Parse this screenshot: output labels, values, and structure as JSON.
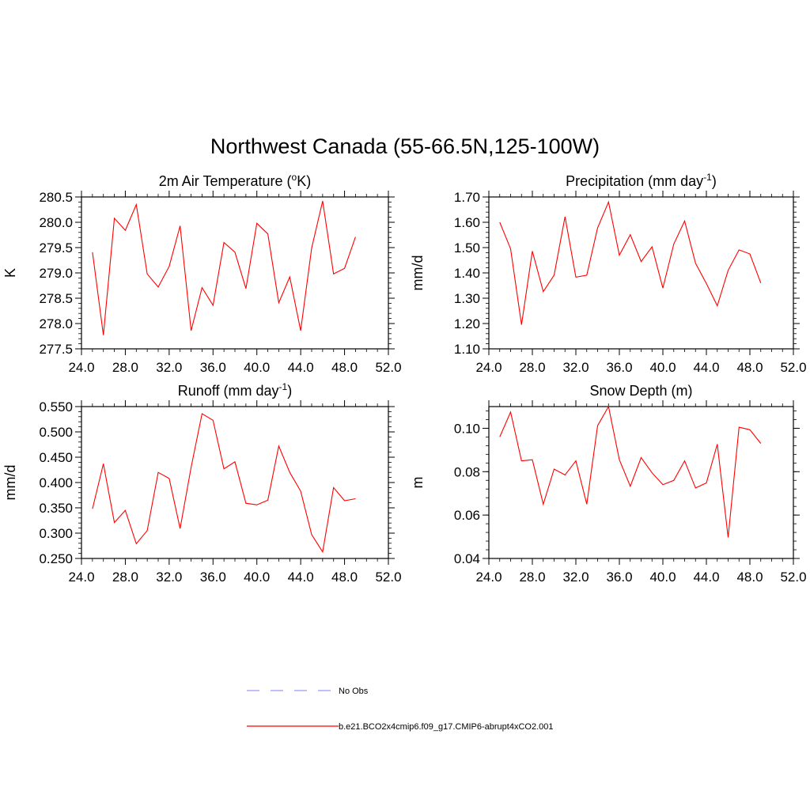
{
  "figure_title": "Northwest Canada (55-66.5N,125-100W)",
  "legend": {
    "entries": [
      {
        "label": "No Obs",
        "color": "#9999ff",
        "dash": true
      },
      {
        "label": "b.e21.BCO2x4cmip6.f09_g17.CMIP6-abrupt4xCO2.001",
        "color": "#ff0000",
        "dash": false
      }
    ]
  },
  "chart_data": [
    {
      "type": "line",
      "title": "2m Air Temperature (",
      "title_super": "o",
      "title_after": "K)",
      "ylabel": "K",
      "xlim": [
        24,
        52
      ],
      "ylim": [
        277.5,
        280.5
      ],
      "xticks": [
        "24.0",
        "28.0",
        "32.0",
        "36.0",
        "40.0",
        "44.0",
        "48.0",
        "52.0"
      ],
      "yticks": [
        "277.5",
        "278.0",
        "278.5",
        "279.0",
        "279.5",
        "280.0",
        "280.5"
      ],
      "series": [
        {
          "color": "#ff0000",
          "x": [
            25,
            26,
            27,
            28,
            29,
            30,
            31,
            32,
            33,
            34,
            35,
            36,
            37,
            38,
            39,
            40,
            41,
            42,
            43,
            44,
            45,
            46,
            47,
            48,
            49
          ],
          "y": [
            279.41,
            277.77,
            280.08,
            279.84,
            280.35,
            278.98,
            278.72,
            279.13,
            279.93,
            277.86,
            278.71,
            278.36,
            279.6,
            279.41,
            278.69,
            279.98,
            279.77,
            278.41,
            278.92,
            277.86,
            279.49,
            280.42,
            278.98,
            279.09,
            279.71
          ]
        }
      ]
    },
    {
      "type": "line",
      "title": "Precipitation (mm day",
      "title_super": "-1",
      "title_after": ")",
      "ylabel": "mm/d",
      "xlim": [
        24,
        52
      ],
      "ylim": [
        1.1,
        1.7
      ],
      "xticks": [
        "24.0",
        "28.0",
        "32.0",
        "36.0",
        "40.0",
        "44.0",
        "48.0",
        "52.0"
      ],
      "yticks": [
        "1.10",
        "1.20",
        "1.30",
        "1.40",
        "1.50",
        "1.60",
        "1.70"
      ],
      "series": [
        {
          "color": "#ff0000",
          "x": [
            25,
            26,
            27,
            28,
            29,
            30,
            31,
            32,
            33,
            34,
            35,
            36,
            37,
            38,
            39,
            40,
            41,
            42,
            43,
            44,
            45,
            46,
            47,
            48,
            49
          ],
          "y": [
            1.6,
            1.495,
            1.195,
            1.486,
            1.326,
            1.391,
            1.622,
            1.383,
            1.391,
            1.578,
            1.68,
            1.47,
            1.551,
            1.445,
            1.503,
            1.34,
            1.514,
            1.605,
            1.438,
            1.358,
            1.27,
            1.41,
            1.491,
            1.475,
            1.36
          ]
        }
      ]
    },
    {
      "type": "line",
      "title": "Runoff (mm day",
      "title_super": "-1",
      "title_after": ")",
      "ylabel": "mm/d",
      "xlim": [
        24,
        52
      ],
      "ylim": [
        0.25,
        0.55
      ],
      "xticks": [
        "24.0",
        "28.0",
        "32.0",
        "36.0",
        "40.0",
        "44.0",
        "48.0",
        "52.0"
      ],
      "yticks": [
        "0.250",
        "0.300",
        "0.350",
        "0.400",
        "0.450",
        "0.500",
        "0.550"
      ],
      "series": [
        {
          "color": "#ff0000",
          "x": [
            25,
            26,
            27,
            28,
            29,
            30,
            31,
            32,
            33,
            34,
            35,
            36,
            37,
            38,
            39,
            40,
            41,
            42,
            43,
            44,
            45,
            46,
            47,
            48,
            49
          ],
          "y": [
            0.348,
            0.437,
            0.321,
            0.345,
            0.279,
            0.305,
            0.42,
            0.408,
            0.309,
            0.43,
            0.536,
            0.523,
            0.427,
            0.441,
            0.359,
            0.356,
            0.365,
            0.472,
            0.42,
            0.383,
            0.297,
            0.263,
            0.39,
            0.364,
            0.368
          ]
        }
      ]
    },
    {
      "type": "line",
      "title": "Snow Depth (m)",
      "title_super": "",
      "title_after": "",
      "ylabel": "m",
      "xlim": [
        24,
        52
      ],
      "ylim": [
        0.04,
        0.11
      ],
      "xticks": [
        "24.0",
        "28.0",
        "32.0",
        "36.0",
        "40.0",
        "44.0",
        "48.0",
        "52.0"
      ],
      "yticks": [
        "0.04",
        "0.06",
        "0.08",
        "0.10"
      ],
      "ytick_values": [
        0.04,
        0.06,
        0.08,
        0.1
      ],
      "series": [
        {
          "color": "#ff0000",
          "x": [
            25,
            26,
            27,
            28,
            29,
            30,
            31,
            32,
            33,
            34,
            35,
            36,
            37,
            38,
            39,
            40,
            41,
            42,
            43,
            44,
            45,
            46,
            47,
            48,
            49
          ],
          "y": [
            0.096,
            0.1075,
            0.085,
            0.0855,
            0.065,
            0.0812,
            0.0785,
            0.085,
            0.065,
            0.1012,
            0.11,
            0.0855,
            0.0733,
            0.0865,
            0.0795,
            0.074,
            0.076,
            0.085,
            0.0725,
            0.0748,
            0.0927,
            0.0497,
            0.1005,
            0.0993,
            0.093
          ]
        }
      ]
    }
  ]
}
